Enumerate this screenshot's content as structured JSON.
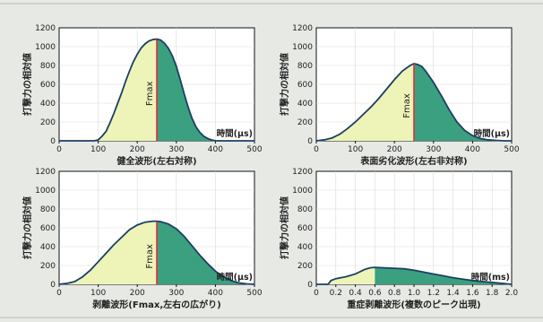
{
  "chart_data": [
    {
      "type": "area",
      "ylabel": "打撃力の相対値",
      "xlabel": "時間(μs)",
      "caption": "健全波形(左右対称)",
      "marker_label": "Fmax",
      "marker_x": 250,
      "xlim": [
        0,
        500
      ],
      "ylim": [
        0,
        1200
      ],
      "xticks": [
        "0",
        "100",
        "200",
        "300",
        "400",
        "500"
      ],
      "yticks": [
        "0",
        "200",
        "400",
        "600",
        "800",
        "1000",
        "1200"
      ],
      "x": [
        0,
        90,
        100,
        110,
        120,
        130,
        140,
        150,
        160,
        170,
        180,
        190,
        200,
        210,
        220,
        230,
        240,
        250,
        260,
        270,
        280,
        290,
        300,
        310,
        320,
        330,
        340,
        350,
        360,
        370,
        380,
        390,
        400,
        500
      ],
      "values": [
        0,
        0,
        10,
        50,
        100,
        190,
        290,
        400,
        510,
        630,
        740,
        840,
        920,
        985,
        1030,
        1060,
        1075,
        1080,
        1070,
        1035,
        980,
        900,
        790,
        650,
        500,
        360,
        240,
        150,
        90,
        50,
        25,
        10,
        0,
        0
      ]
    },
    {
      "type": "area",
      "ylabel": "打撃力の相対値",
      "xlabel": "時間(μs)",
      "caption": "表面劣化波形(左右非対称)",
      "marker_label": "Fmax",
      "marker_x": 250,
      "xlim": [
        0,
        500
      ],
      "ylim": [
        0,
        1200
      ],
      "xticks": [
        "0",
        "100",
        "200",
        "300",
        "400",
        "500"
      ],
      "yticks": [
        "0",
        "200",
        "400",
        "600",
        "800",
        "1000",
        "1200"
      ],
      "x": [
        0,
        20,
        40,
        60,
        80,
        100,
        120,
        140,
        160,
        180,
        200,
        220,
        240,
        250,
        260,
        270,
        280,
        300,
        320,
        340,
        360,
        380,
        400,
        420,
        440,
        460,
        480,
        500
      ],
      "values": [
        0,
        10,
        30,
        70,
        130,
        200,
        280,
        360,
        450,
        550,
        650,
        740,
        800,
        820,
        810,
        790,
        740,
        620,
        480,
        330,
        200,
        110,
        55,
        25,
        10,
        5,
        0,
        0
      ]
    },
    {
      "type": "area",
      "ylabel": "打撃力の相対値",
      "xlabel": "時間(μs)",
      "caption": "剥離波形(Fmax,左右の広がり)",
      "marker_label": "Fmax",
      "marker_x": 250,
      "xlim": [
        0,
        500
      ],
      "ylim": [
        0,
        1200
      ],
      "xticks": [
        "0",
        "100",
        "200",
        "300",
        "400",
        "500"
      ],
      "yticks": [
        "0",
        "200",
        "400",
        "600",
        "800",
        "1000",
        "1200"
      ],
      "x": [
        0,
        20,
        40,
        60,
        80,
        100,
        120,
        140,
        160,
        180,
        200,
        220,
        240,
        250,
        260,
        280,
        300,
        320,
        340,
        360,
        380,
        400,
        420,
        440,
        460,
        480,
        500
      ],
      "values": [
        0,
        10,
        30,
        80,
        150,
        240,
        330,
        420,
        500,
        580,
        630,
        660,
        670,
        670,
        665,
        640,
        590,
        510,
        410,
        310,
        220,
        140,
        80,
        40,
        15,
        5,
        0
      ]
    },
    {
      "type": "area",
      "ylabel": "打撃力の相対値",
      "xlabel": "時間(ms)",
      "caption": "重症剥離波形(複数のピーク出現)",
      "marker_x": 0.6,
      "xlim": [
        0,
        2.0
      ],
      "ylim": [
        0,
        1200
      ],
      "xticks": [
        "0",
        "0.2",
        "0.4",
        "0.6",
        "0.8",
        "1.0",
        "1.2",
        "1.4",
        "1.6",
        "1.8",
        "2.0"
      ],
      "yticks": [
        "0",
        "200",
        "400",
        "600",
        "800",
        "1000",
        "1200"
      ],
      "x": [
        0,
        0.12,
        0.15,
        0.2,
        0.3,
        0.4,
        0.5,
        0.55,
        0.6,
        0.7,
        0.8,
        0.9,
        1.0,
        1.1,
        1.2,
        1.3,
        1.4,
        1.5,
        1.6,
        1.7,
        1.8,
        1.9,
        2.0
      ],
      "values": [
        0,
        0,
        40,
        60,
        80,
        110,
        160,
        175,
        180,
        175,
        170,
        165,
        150,
        130,
        110,
        90,
        70,
        55,
        40,
        30,
        20,
        10,
        0
      ]
    }
  ]
}
